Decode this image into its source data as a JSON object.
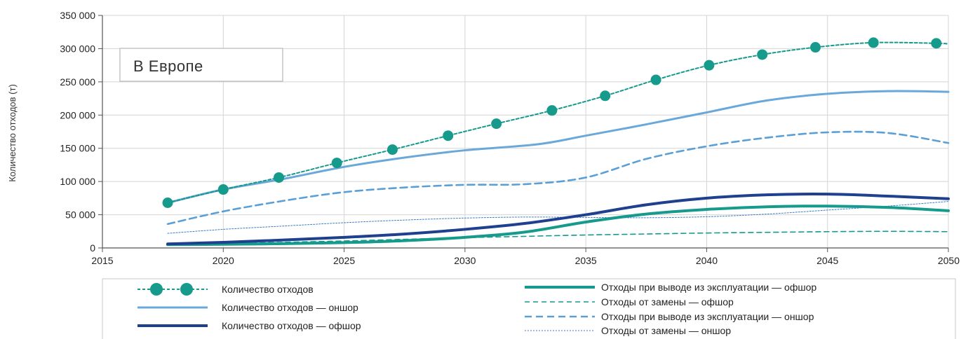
{
  "chart_data": {
    "type": "line",
    "title": "",
    "inset_label": "В Европе",
    "xlabel": "",
    "ylabel": "Количество отходов (т)",
    "xlim": [
      2015,
      2050
    ],
    "ylim": [
      0,
      350000
    ],
    "x_ticks": [
      2015,
      2020,
      2025,
      2030,
      2035,
      2040,
      2045,
      2050
    ],
    "x_tick_labels": [
      "2015",
      "2020",
      "2025",
      "2030",
      "2035",
      "2040",
      "2045",
      "2050"
    ],
    "y_ticks": [
      0,
      50000,
      100000,
      150000,
      200000,
      250000,
      300000,
      350000
    ],
    "y_tick_labels": [
      "0",
      "50 000",
      "100 000",
      "150 000",
      "200 000",
      "250 000",
      "300 000",
      "350 000"
    ],
    "grid": true,
    "legend_position": "bottom",
    "series": [
      {
        "name": "Количество отходов",
        "color": "#159a8c",
        "style": "dotted-markers",
        "x": [
          2017.7,
          2020,
          2022.3,
          2024.7,
          2027,
          2029.3,
          2031.3,
          2033.6,
          2035.8,
          2037.9,
          2040.1,
          2042.3,
          2044.5,
          2046.9,
          2049.5,
          2050
        ],
        "y": [
          68000,
          88000,
          106000,
          128000,
          148000,
          169000,
          187000,
          207000,
          229000,
          253000,
          275000,
          291000,
          302000,
          309000,
          308000,
          307000
        ],
        "markers": [
          true,
          true,
          true,
          true,
          true,
          true,
          true,
          true,
          true,
          true,
          true,
          true,
          true,
          true,
          true,
          false
        ]
      },
      {
        "name": "Количество отходов — оншор",
        "color": "#6aa8da",
        "style": "solid",
        "x": [
          2017.7,
          2020,
          2022.5,
          2025,
          2027.5,
          2030,
          2033,
          2035,
          2037.5,
          2040,
          2042.5,
          2045,
          2047.5,
          2050
        ],
        "y": [
          68000,
          88000,
          104000,
          122000,
          136000,
          147000,
          156000,
          169000,
          186000,
          204000,
          222000,
          232000,
          236000,
          235000
        ]
      },
      {
        "name": "Количество отходов — офшор",
        "color": "#1f3f8f",
        "style": "thick",
        "x": [
          2017.7,
          2020,
          2022.5,
          2025,
          2027.5,
          2030,
          2032.5,
          2035,
          2037.5,
          2040,
          2042.5,
          2045,
          2047.5,
          2050
        ],
        "y": [
          6000,
          8500,
          12000,
          16000,
          21000,
          28000,
          37000,
          50000,
          65000,
          75000,
          80000,
          81000,
          78000,
          74000
        ]
      },
      {
        "name": "Отходы при выводе из эксплуатации — офшор",
        "color": "#159a8c",
        "style": "thick",
        "x": [
          2017.7,
          2020,
          2022.5,
          2025,
          2027.5,
          2030,
          2032.5,
          2035,
          2037.5,
          2040,
          2042.5,
          2045,
          2047.5,
          2050
        ],
        "y": [
          5000,
          5500,
          6500,
          8000,
          11000,
          16000,
          24000,
          39000,
          51000,
          58000,
          62000,
          63000,
          61000,
          56000
        ]
      },
      {
        "name": "Отходы от замены — офшор",
        "color": "#159a8c",
        "style": "dashed",
        "x": [
          2017.7,
          2020,
          2022.5,
          2025,
          2027.5,
          2030,
          2032.5,
          2035,
          2037.5,
          2040,
          2042.5,
          2045,
          2047.5,
          2050
        ],
        "y": [
          5000,
          6500,
          8500,
          10500,
          13000,
          15500,
          17500,
          19500,
          21000,
          22500,
          23500,
          24500,
          25000,
          24500
        ]
      },
      {
        "name": "Отходы при выводе из эксплуатации — оншор",
        "color": "#5a9fd6",
        "style": "dashed-wide",
        "x": [
          2017.7,
          2020,
          2022.5,
          2025,
          2027.5,
          2030,
          2032.5,
          2035,
          2037.5,
          2040,
          2042.5,
          2045,
          2047.5,
          2050
        ],
        "y": [
          36000,
          55000,
          71000,
          84000,
          91000,
          95000,
          96000,
          106000,
          134000,
          153000,
          166000,
          174000,
          173000,
          158000
        ]
      },
      {
        "name": "Отходы от замены — оншор",
        "color": "#3a7cc8",
        "style": "thin-dotted",
        "x": [
          2017.7,
          2020,
          2022.5,
          2025,
          2027.5,
          2030,
          2032.5,
          2035,
          2037.5,
          2040,
          2042.5,
          2045,
          2047.5,
          2050
        ],
        "y": [
          22000,
          28000,
          33000,
          38000,
          42000,
          45000,
          46500,
          46000,
          45500,
          47000,
          51000,
          57000,
          63000,
          70000
        ]
      }
    ]
  }
}
